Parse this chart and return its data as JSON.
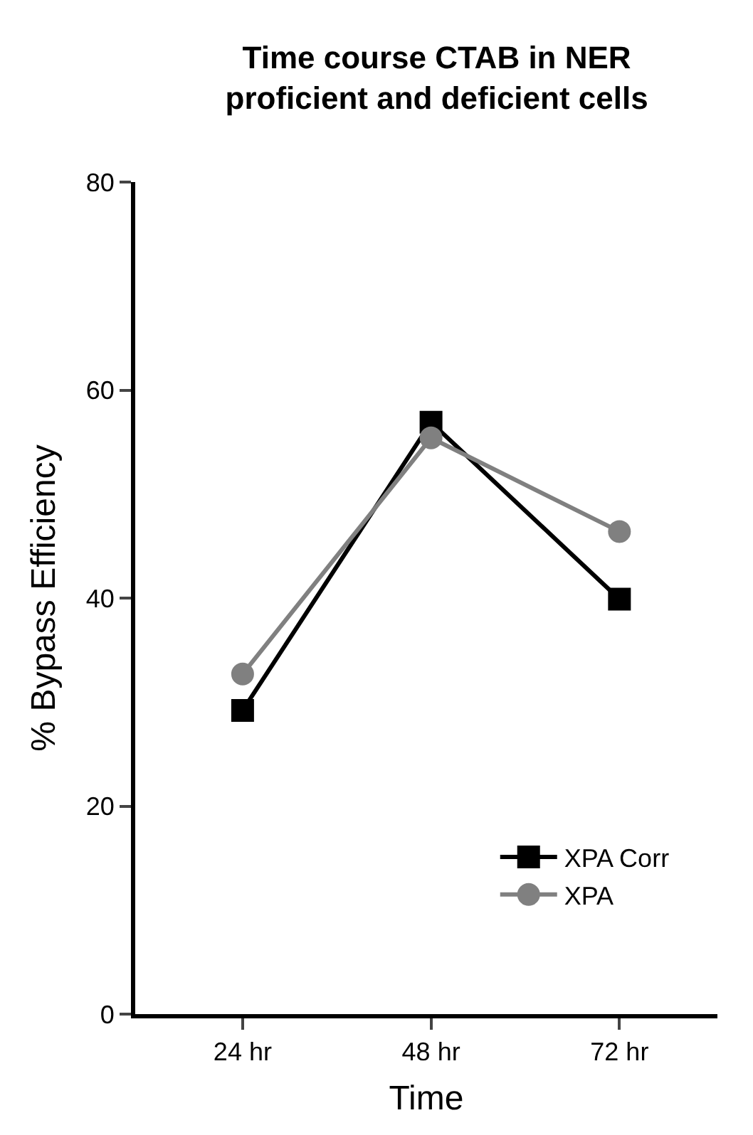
{
  "chart_data": {
    "type": "line",
    "title": "Time course CTAB in NER\nproficient and deficient cells",
    "xlabel": "Time",
    "ylabel": "% Bypass Efficiency",
    "categories": [
      "24 hr",
      "48 hr",
      "72 hr"
    ],
    "series": [
      {
        "name": "XPA Corr",
        "color": "#000000",
        "values": [
          29.2,
          56.9,
          39.9
        ],
        "marker": "square"
      },
      {
        "name": "XPA",
        "color": "#808080",
        "values": [
          32.7,
          55.4,
          46.4
        ],
        "marker": "circle"
      }
    ],
    "ylim": [
      0,
      80
    ],
    "yticks": [
      0,
      20,
      40,
      60,
      80
    ],
    "legend": "bottom right",
    "line_style": "solid"
  }
}
